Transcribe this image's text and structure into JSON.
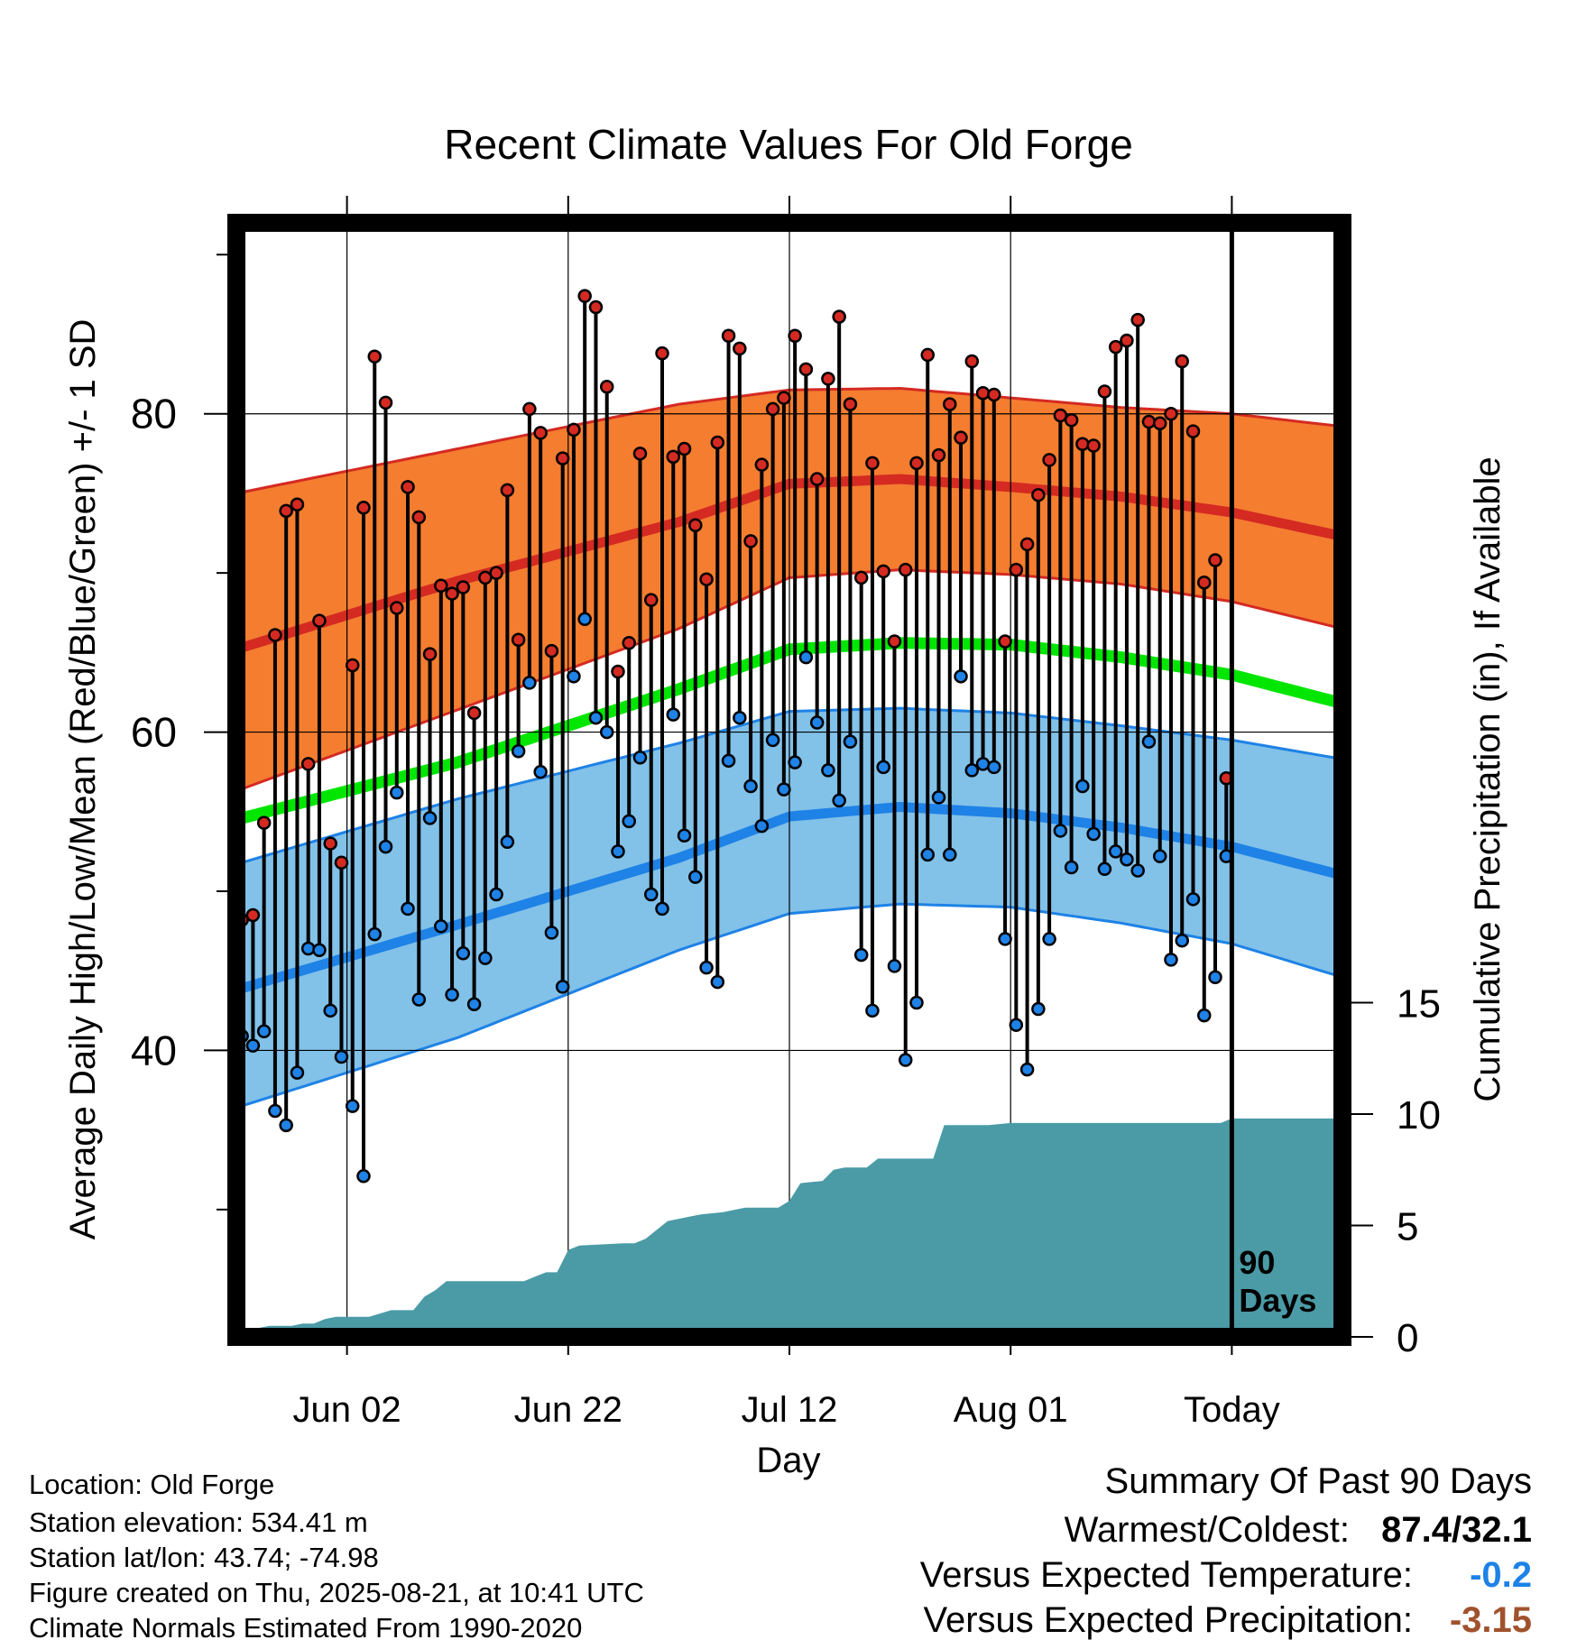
{
  "chart_data": {
    "type": "line",
    "title": "Recent Climate Values For Old Forge",
    "xlabel": "Day",
    "ylabel": "Average Daily High/Low/Mean (Red/Blue/Green) +/- 1 SD",
    "y2label": "Cumulative Precipitation (in), If Available",
    "x_tick_labels": [
      "Jun 02",
      "Jun 22",
      "Jul 12",
      "Aug 01",
      "Today"
    ],
    "x_tick_days": [
      10,
      30,
      50,
      70,
      90
    ],
    "xlim": [
      0,
      100
    ],
    "ylim": [
      22,
      92
    ],
    "y_ticks": [
      40,
      60,
      80
    ],
    "y2_ticks": [
      0,
      5,
      10,
      15
    ],
    "y2lim": [
      0,
      50
    ],
    "today_label": "90 Days",
    "today_day": 90,
    "grid": true,
    "normals": {
      "high_mean": [
        [
          0,
          65.2
        ],
        [
          20,
          69.5
        ],
        [
          40,
          73.2
        ],
        [
          50,
          75.6
        ],
        [
          60,
          75.9
        ],
        [
          70,
          75.4
        ],
        [
          80,
          74.8
        ],
        [
          90,
          73.8
        ],
        [
          100,
          72.3
        ]
      ],
      "high_upper": [
        [
          0,
          75.0
        ],
        [
          20,
          77.8
        ],
        [
          40,
          80.6
        ],
        [
          50,
          81.5
        ],
        [
          60,
          81.6
        ],
        [
          70,
          81.0
        ],
        [
          80,
          80.4
        ],
        [
          90,
          80.0
        ],
        [
          100,
          79.2
        ]
      ],
      "high_lower": [
        [
          0,
          56.3
        ],
        [
          20,
          61.4
        ],
        [
          40,
          66.5
        ],
        [
          50,
          69.7
        ],
        [
          60,
          70.2
        ],
        [
          70,
          69.9
        ],
        [
          80,
          69.3
        ],
        [
          90,
          68.2
        ],
        [
          100,
          66.5
        ]
      ],
      "mean": [
        [
          0,
          54.5
        ],
        [
          20,
          58.1
        ],
        [
          40,
          62.7
        ],
        [
          50,
          65.2
        ],
        [
          60,
          65.6
        ],
        [
          70,
          65.5
        ],
        [
          80,
          64.7
        ],
        [
          90,
          63.6
        ],
        [
          100,
          61.8
        ]
      ],
      "low_mean": [
        [
          0,
          43.8
        ],
        [
          20,
          47.9
        ],
        [
          40,
          52.1
        ],
        [
          50,
          54.7
        ],
        [
          60,
          55.3
        ],
        [
          70,
          54.9
        ],
        [
          80,
          54.0
        ],
        [
          90,
          52.8
        ],
        [
          100,
          51.0
        ]
      ],
      "low_upper": [
        [
          0,
          51.7
        ],
        [
          20,
          55.8
        ],
        [
          40,
          59.3
        ],
        [
          50,
          61.3
        ],
        [
          60,
          61.5
        ],
        [
          70,
          61.2
        ],
        [
          80,
          60.4
        ],
        [
          90,
          59.5
        ],
        [
          100,
          58.3
        ]
      ],
      "low_lower": [
        [
          0,
          36.4
        ],
        [
          20,
          40.8
        ],
        [
          40,
          46.3
        ],
        [
          50,
          48.6
        ],
        [
          60,
          49.2
        ],
        [
          70,
          49.0
        ],
        [
          80,
          48.0
        ],
        [
          90,
          46.7
        ],
        [
          100,
          44.6
        ]
      ]
    },
    "series": [
      {
        "name": "High",
        "color": "#d42a22",
        "values": [
          48.2,
          48.5,
          54.3,
          66.1,
          73.9,
          74.3,
          58.0,
          67.0,
          53.0,
          51.8,
          64.2,
          74.1,
          83.6,
          80.7,
          67.8,
          75.4,
          73.5,
          64.9,
          69.2,
          68.7,
          69.1,
          61.2,
          69.7,
          70.0,
          75.2,
          65.8,
          80.3,
          78.8,
          65.1,
          77.2,
          79.0,
          87.4,
          86.7,
          81.7,
          63.8,
          65.6,
          77.5,
          68.3,
          83.8,
          77.3,
          77.8,
          73.0,
          69.6,
          78.2,
          84.9,
          84.1,
          72.0,
          76.8,
          80.3,
          81.0,
          84.9,
          82.8,
          75.9,
          82.2,
          86.1,
          80.6,
          69.7,
          76.9,
          70.1,
          65.7,
          70.2,
          76.9,
          83.7,
          77.4,
          80.6,
          78.5,
          83.3,
          81.3,
          81.2,
          65.7,
          70.2,
          71.8,
          74.9,
          77.1,
          79.9,
          79.6,
          78.1,
          78.0,
          81.4,
          84.2,
          84.6,
          85.9,
          79.5,
          79.4,
          80.0,
          83.3,
          78.9,
          69.4,
          70.8,
          57.1
        ]
      },
      {
        "name": "Low",
        "color": "#1e82e6",
        "values": [
          40.9,
          40.3,
          41.2,
          36.2,
          35.3,
          38.6,
          46.4,
          46.3,
          42.5,
          39.6,
          36.5,
          32.1,
          47.3,
          52.8,
          56.2,
          48.9,
          43.2,
          54.6,
          47.8,
          43.5,
          46.1,
          42.9,
          45.8,
          49.8,
          53.1,
          58.8,
          63.1,
          57.5,
          47.4,
          44.0,
          63.5,
          67.1,
          60.9,
          60.0,
          52.5,
          54.4,
          58.4,
          49.8,
          48.9,
          61.1,
          53.5,
          50.9,
          45.2,
          44.3,
          58.2,
          60.9,
          56.6,
          54.1,
          59.5,
          56.4,
          58.1,
          64.7,
          60.6,
          57.6,
          55.7,
          59.4,
          46.0,
          42.5,
          57.8,
          45.3,
          39.4,
          43.0,
          52.3,
          55.9,
          52.3,
          63.5,
          57.6,
          58.0,
          57.8,
          47.0,
          41.6,
          38.8,
          42.6,
          47.0,
          53.8,
          51.5,
          56.6,
          53.6,
          51.4,
          52.5,
          52.0,
          51.3,
          59.4,
          52.2,
          45.7,
          46.9,
          49.5,
          42.2,
          44.6,
          52.2
        ]
      }
    ],
    "precipitation": [
      [
        0,
        0.2
      ],
      [
        1,
        0.3
      ],
      [
        2,
        0.4
      ],
      [
        3,
        0.5
      ],
      [
        4,
        0.5
      ],
      [
        5,
        0.5
      ],
      [
        6,
        0.6
      ],
      [
        7,
        0.6
      ],
      [
        8,
        0.8
      ],
      [
        9,
        0.9
      ],
      [
        12,
        0.9
      ],
      [
        14,
        1.2
      ],
      [
        16,
        1.2
      ],
      [
        17,
        1.8
      ],
      [
        18,
        2.1
      ],
      [
        19,
        2.5
      ],
      [
        26,
        2.5
      ],
      [
        27,
        2.7
      ],
      [
        28,
        2.9
      ],
      [
        29,
        2.9
      ],
      [
        30,
        3.9
      ],
      [
        31,
        4.1
      ],
      [
        35,
        4.2
      ],
      [
        36,
        4.2
      ],
      [
        37,
        4.4
      ],
      [
        38,
        4.8
      ],
      [
        39,
        5.2
      ],
      [
        40,
        5.3
      ],
      [
        42,
        5.5
      ],
      [
        44,
        5.6
      ],
      [
        45,
        5.7
      ],
      [
        46,
        5.8
      ],
      [
        48,
        5.8
      ],
      [
        49,
        5.8
      ],
      [
        50,
        6.1
      ],
      [
        51,
        6.9
      ],
      [
        53,
        7.0
      ],
      [
        54,
        7.5
      ],
      [
        55,
        7.6
      ],
      [
        57,
        7.6
      ],
      [
        58,
        8.0
      ],
      [
        63,
        8.0
      ],
      [
        64,
        9.5
      ],
      [
        68,
        9.5
      ],
      [
        70,
        9.6
      ],
      [
        75,
        9.6
      ],
      [
        89,
        9.6
      ],
      [
        90,
        9.8
      ],
      [
        100,
        9.8
      ]
    ],
    "summary": {
      "heading": "Summary Of Past 90 Days",
      "warmest_coldest_label": "Warmest/Coldest:",
      "warmest_coldest_value": "87.4/32.1",
      "temp_label": "Versus Expected Temperature:",
      "temp_value": "-0.2",
      "temp_color": "#1e82e6",
      "precip_label": "Versus Expected Precipitation:",
      "precip_value": "-3.15",
      "precip_color": "#a0522d"
    }
  },
  "station": {
    "location": "Location: Old Forge",
    "elevation": "Station elevation: 534.41 m",
    "latlon": "Station lat/lon: 43.74; -74.98",
    "created": "Figure created on Thu, 2025-08-21, at 10:41 UTC",
    "normals": "Climate Normals Estimated From 1990-2020"
  },
  "colors": {
    "high_band": "#f47d30",
    "high_line": "#d42a22",
    "mean_line": "#00e600",
    "low_band": "#82c1e8",
    "low_line": "#1e82e6",
    "precip_fill": "#4a9ba6"
  }
}
